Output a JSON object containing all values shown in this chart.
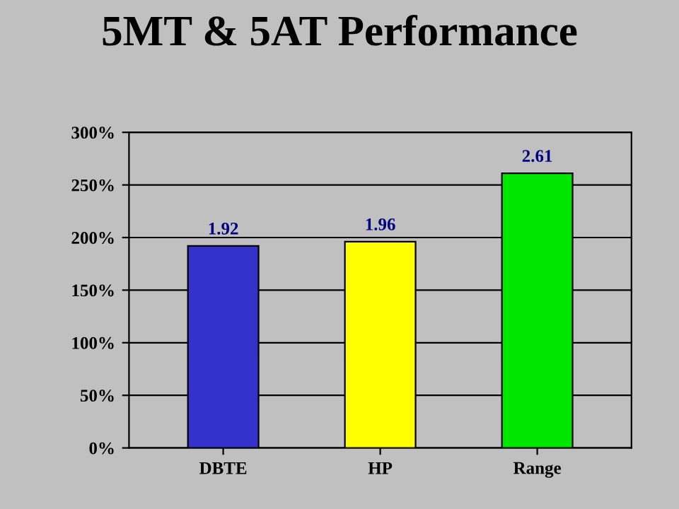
{
  "chart_data": {
    "type": "bar",
    "title": "5MT & 5AT Performance",
    "categories": [
      "DBTE",
      "HP",
      "Range"
    ],
    "values": [
      1.92,
      1.96,
      2.61
    ],
    "colors": [
      "#3333cc",
      "#ffff00",
      "#00e600"
    ],
    "data_labels": true,
    "ylim": [
      0,
      3
    ],
    "yticks": [
      {
        "value": 0,
        "label": "0%"
      },
      {
        "value": 0.5,
        "label": "50%"
      },
      {
        "value": 1,
        "label": "100%"
      },
      {
        "value": 1.5,
        "label": "150%"
      },
      {
        "value": 2,
        "label": "200%"
      },
      {
        "value": 2.5,
        "label": "250%"
      },
      {
        "value": 3,
        "label": "300%"
      }
    ],
    "grid": "y"
  }
}
